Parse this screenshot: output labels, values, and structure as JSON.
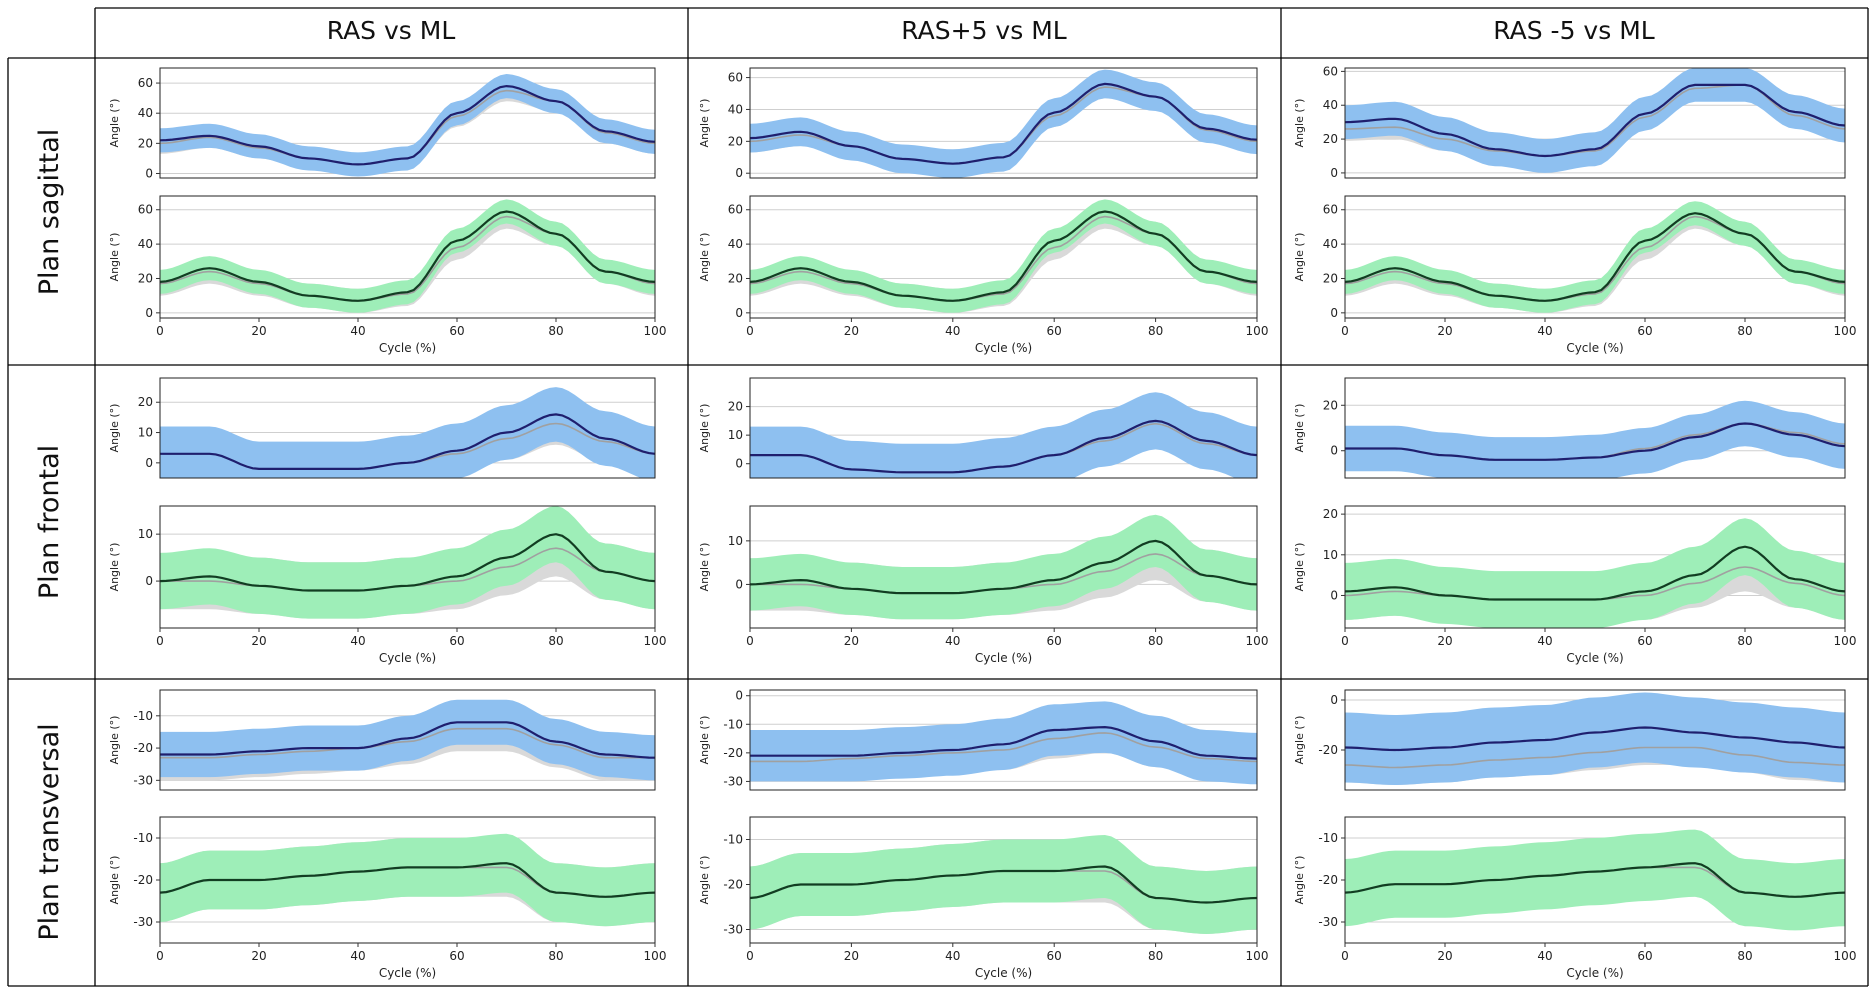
{
  "columns": [
    "RAS vs ML",
    "RAS+5 vs ML",
    "RAS -5 vs ML"
  ],
  "rows": [
    "Plan sagittal",
    "Plan frontal",
    "Plan transversal"
  ],
  "colors": {
    "blue_band": "#8ec0f0",
    "green_band": "#9eeeb8",
    "gray_band": "#d9d9d9",
    "blue_line": "#1f1f6e",
    "green_line": "#123d22",
    "gray_line": "#a0a0a0",
    "grid": "#cfcfcf",
    "border": "#000000"
  },
  "chart_data": [
    {
      "type": "line",
      "row": 0,
      "col": 0,
      "panel": "top",
      "band": "blue",
      "ylabel": "Angle (°)",
      "ylim": [
        -3,
        70
      ],
      "yticks": [
        0,
        20,
        40,
        60
      ],
      "grid": true,
      "x": [
        0,
        10,
        20,
        30,
        40,
        50,
        60,
        70,
        80,
        90,
        100
      ],
      "series": [
        {
          "values": [
            22,
            25,
            18,
            10,
            6,
            10,
            40,
            58,
            48,
            28,
            21
          ],
          "band_width": 8
        },
        {
          "values": [
            20,
            24,
            17,
            10,
            6,
            10,
            38,
            55,
            48,
            27,
            20
          ],
          "band_width": 5
        }
      ]
    },
    {
      "type": "line",
      "row": 0,
      "col": 0,
      "panel": "bottom",
      "band": "green",
      "ylabel": "Angle (°)",
      "xlabel": "Cycle (%)",
      "ylim": [
        -3,
        68
      ],
      "yticks": [
        0,
        20,
        40,
        60
      ],
      "xticks": [
        0,
        20,
        40,
        60,
        80,
        100
      ],
      "grid": true,
      "x": [
        0,
        10,
        20,
        30,
        40,
        50,
        60,
        70,
        80,
        90,
        100
      ],
      "series": [
        {
          "values": [
            18,
            26,
            18,
            10,
            7,
            12,
            42,
            59,
            46,
            24,
            18
          ],
          "band_width": 7
        },
        {
          "values": [
            17,
            24,
            17,
            10,
            7,
            11,
            38,
            56,
            46,
            24,
            17
          ],
          "band_width": 5
        }
      ]
    },
    {
      "type": "line",
      "row": 0,
      "col": 1,
      "panel": "top",
      "band": "blue",
      "ylabel": "Angle (°)",
      "ylim": [
        -3,
        66
      ],
      "yticks": [
        0,
        20,
        40,
        60
      ],
      "grid": true,
      "x": [
        0,
        10,
        20,
        30,
        40,
        50,
        60,
        70,
        80,
        90,
        100
      ],
      "series": [
        {
          "values": [
            22,
            26,
            17,
            9,
            6,
            10,
            38,
            56,
            48,
            28,
            21
          ],
          "band_width": 9
        },
        {
          "values": [
            20,
            24,
            17,
            9,
            6,
            10,
            36,
            54,
            48,
            27,
            20
          ],
          "band_width": 5
        }
      ]
    },
    {
      "type": "line",
      "row": 0,
      "col": 1,
      "panel": "bottom",
      "band": "green",
      "ylabel": "Angle (°)",
      "xlabel": "Cycle (%)",
      "ylim": [
        -3,
        68
      ],
      "yticks": [
        0,
        20,
        40,
        60
      ],
      "xticks": [
        0,
        20,
        40,
        60,
        80,
        100
      ],
      "grid": true,
      "x": [
        0,
        10,
        20,
        30,
        40,
        50,
        60,
        70,
        80,
        90,
        100
      ],
      "series": [
        {
          "values": [
            18,
            26,
            18,
            10,
            7,
            12,
            42,
            59,
            46,
            24,
            18
          ],
          "band_width": 7
        },
        {
          "values": [
            17,
            24,
            17,
            10,
            7,
            11,
            38,
            56,
            46,
            24,
            17
          ],
          "band_width": 5
        }
      ]
    },
    {
      "type": "line",
      "row": 0,
      "col": 2,
      "panel": "top",
      "band": "blue",
      "ylabel": "Angle (°)",
      "ylim": [
        -3,
        62
      ],
      "yticks": [
        0,
        20,
        40,
        60
      ],
      "grid": true,
      "x": [
        0,
        10,
        20,
        30,
        40,
        50,
        60,
        70,
        80,
        90,
        100
      ],
      "series": [
        {
          "values": [
            30,
            32,
            23,
            14,
            10,
            14,
            35,
            52,
            52,
            36,
            28
          ],
          "band_width": 10
        },
        {
          "values": [
            26,
            27,
            20,
            13,
            10,
            13,
            33,
            50,
            52,
            34,
            26
          ],
          "band_width": 5
        }
      ]
    },
    {
      "type": "line",
      "row": 0,
      "col": 2,
      "panel": "bottom",
      "band": "green",
      "ylabel": "Angle (°)",
      "xlabel": "Cycle (%)",
      "ylim": [
        -3,
        68
      ],
      "yticks": [
        0,
        20,
        40,
        60
      ],
      "xticks": [
        0,
        20,
        40,
        60,
        80,
        100
      ],
      "grid": true,
      "x": [
        0,
        10,
        20,
        30,
        40,
        50,
        60,
        70,
        80,
        90,
        100
      ],
      "series": [
        {
          "values": [
            18,
            26,
            18,
            10,
            7,
            12,
            42,
            58,
            46,
            24,
            18
          ],
          "band_width": 7
        },
        {
          "values": [
            17,
            24,
            17,
            10,
            7,
            11,
            38,
            56,
            46,
            24,
            17
          ],
          "band_width": 5
        }
      ]
    },
    {
      "type": "line",
      "row": 1,
      "col": 0,
      "panel": "top",
      "band": "blue",
      "ylabel": "Angle (°)",
      "ylim": [
        -5,
        28
      ],
      "yticks": [
        0,
        10,
        20
      ],
      "grid": true,
      "x": [
        0,
        10,
        20,
        30,
        40,
        50,
        60,
        70,
        80,
        90,
        100
      ],
      "series": [
        {
          "values": [
            3,
            3,
            -2,
            -2,
            -2,
            0,
            4,
            10,
            16,
            8,
            3
          ],
          "band_width": 9
        },
        {
          "values": [
            3,
            3,
            -2,
            -2,
            -2,
            0,
            3,
            8,
            13,
            7,
            3
          ],
          "band_width": 5
        }
      ]
    },
    {
      "type": "line",
      "row": 1,
      "col": 0,
      "panel": "bottom",
      "band": "green",
      "ylabel": "Angle (°)",
      "xlabel": "Cycle (%)",
      "ylim": [
        -10,
        16
      ],
      "yticks": [
        0,
        10
      ],
      "xticks": [
        0,
        20,
        40,
        60,
        80,
        100
      ],
      "grid": true,
      "x": [
        0,
        10,
        20,
        30,
        40,
        50,
        60,
        70,
        80,
        90,
        100
      ],
      "series": [
        {
          "values": [
            0,
            1,
            -1,
            -2,
            -2,
            -1,
            1,
            5,
            10,
            2,
            0
          ],
          "band_width": 6
        },
        {
          "values": [
            0,
            0,
            -1,
            -2,
            -2,
            -1,
            0,
            3,
            7,
            2,
            0
          ],
          "band_width": 4
        }
      ]
    },
    {
      "type": "line",
      "row": 1,
      "col": 1,
      "panel": "top",
      "band": "blue",
      "ylabel": "Angle (°)",
      "ylim": [
        -5,
        30
      ],
      "yticks": [
        0,
        10,
        20
      ],
      "grid": true,
      "x": [
        0,
        10,
        20,
        30,
        40,
        50,
        60,
        70,
        80,
        90,
        100
      ],
      "series": [
        {
          "values": [
            3,
            3,
            -2,
            -3,
            -3,
            -1,
            3,
            9,
            15,
            8,
            3
          ],
          "band_width": 10
        },
        {
          "values": [
            3,
            3,
            -2,
            -3,
            -3,
            -1,
            3,
            8,
            14,
            7,
            3
          ],
          "band_width": 5
        }
      ]
    },
    {
      "type": "line",
      "row": 1,
      "col": 1,
      "panel": "bottom",
      "band": "green",
      "ylabel": "Angle (°)",
      "xlabel": "Cycle (%)",
      "ylim": [
        -10,
        18
      ],
      "yticks": [
        0,
        10
      ],
      "xticks": [
        0,
        20,
        40,
        60,
        80,
        100
      ],
      "grid": true,
      "x": [
        0,
        10,
        20,
        30,
        40,
        50,
        60,
        70,
        80,
        90,
        100
      ],
      "series": [
        {
          "values": [
            0,
            1,
            -1,
            -2,
            -2,
            -1,
            1,
            5,
            10,
            2,
            0
          ],
          "band_width": 6
        },
        {
          "values": [
            0,
            0,
            -1,
            -2,
            -2,
            -1,
            0,
            3,
            7,
            2,
            0
          ],
          "band_width": 4
        }
      ]
    },
    {
      "type": "line",
      "row": 1,
      "col": 2,
      "panel": "top",
      "band": "blue",
      "ylabel": "Angle (°)",
      "ylim": [
        -12,
        32
      ],
      "yticks": [
        0,
        20
      ],
      "grid": true,
      "x": [
        0,
        10,
        20,
        30,
        40,
        50,
        60,
        70,
        80,
        90,
        100
      ],
      "series": [
        {
          "values": [
            1,
            1,
            -2,
            -4,
            -4,
            -3,
            0,
            6,
            12,
            7,
            2
          ],
          "band_width": 10
        },
        {
          "values": [
            1,
            1,
            -2,
            -4,
            -4,
            -3,
            1,
            7,
            12,
            8,
            3
          ],
          "band_width": 5
        }
      ]
    },
    {
      "type": "line",
      "row": 1,
      "col": 2,
      "panel": "bottom",
      "band": "green",
      "ylabel": "Angle (°)",
      "xlabel": "Cycle (%)",
      "ylim": [
        -8,
        22
      ],
      "yticks": [
        0,
        10,
        20
      ],
      "xticks": [
        0,
        20,
        40,
        60,
        80,
        100
      ],
      "grid": true,
      "x": [
        0,
        10,
        20,
        30,
        40,
        50,
        60,
        70,
        80,
        90,
        100
      ],
      "series": [
        {
          "values": [
            1,
            2,
            0,
            -1,
            -1,
            -1,
            1,
            5,
            12,
            4,
            1
          ],
          "band_width": 7
        },
        {
          "values": [
            0,
            1,
            0,
            -1,
            -1,
            -1,
            0,
            3,
            7,
            3,
            0
          ],
          "band_width": 4
        }
      ]
    },
    {
      "type": "line",
      "row": 2,
      "col": 0,
      "panel": "top",
      "band": "blue",
      "ylabel": "Angle (°)",
      "ylim": [
        -33,
        -2
      ],
      "yticks": [
        -10,
        -20,
        -30
      ],
      "grid": true,
      "x": [
        0,
        10,
        20,
        30,
        40,
        50,
        60,
        70,
        80,
        90,
        100
      ],
      "series": [
        {
          "values": [
            -22,
            -22,
            -21,
            -20,
            -20,
            -17,
            -12,
            -12,
            -18,
            -22,
            -23
          ],
          "band_width": 7
        },
        {
          "values": [
            -23,
            -23,
            -22,
            -21,
            -20,
            -18,
            -14,
            -14,
            -19,
            -23,
            -23
          ],
          "band_width": 5
        }
      ]
    },
    {
      "type": "line",
      "row": 2,
      "col": 0,
      "panel": "bottom",
      "band": "green",
      "ylabel": "Angle (°)",
      "xlabel": "Cycle (%)",
      "ylim": [
        -35,
        -5
      ],
      "yticks": [
        -10,
        -20,
        -30
      ],
      "xticks": [
        0,
        20,
        40,
        60,
        80,
        100
      ],
      "grid": true,
      "x": [
        0,
        10,
        20,
        30,
        40,
        50,
        60,
        70,
        80,
        90,
        100
      ],
      "series": [
        {
          "values": [
            -23,
            -20,
            -20,
            -19,
            -18,
            -17,
            -17,
            -16,
            -23,
            -24,
            -23
          ],
          "band_width": 7
        },
        {
          "values": [
            -23,
            -20,
            -20,
            -19,
            -18,
            -17,
            -17,
            -17,
            -23,
            -24,
            -23
          ],
          "band_width": 5
        }
      ]
    },
    {
      "type": "line",
      "row": 2,
      "col": 1,
      "panel": "top",
      "band": "blue",
      "ylabel": "Angle (°)",
      "ylim": [
        -33,
        2
      ],
      "yticks": [
        0,
        -10,
        -20,
        -30
      ],
      "grid": true,
      "x": [
        0,
        10,
        20,
        30,
        40,
        50,
        60,
        70,
        80,
        90,
        100
      ],
      "series": [
        {
          "values": [
            -21,
            -21,
            -21,
            -20,
            -19,
            -17,
            -12,
            -11,
            -16,
            -21,
            -22
          ],
          "band_width": 9
        },
        {
          "values": [
            -23,
            -23,
            -22,
            -21,
            -20,
            -19,
            -15,
            -13,
            -18,
            -22,
            -23
          ],
          "band_width": 5
        }
      ]
    },
    {
      "type": "line",
      "row": 2,
      "col": 1,
      "panel": "bottom",
      "band": "green",
      "ylabel": "Angle (°)",
      "xlabel": "Cycle (%)",
      "ylim": [
        -33,
        -5
      ],
      "yticks": [
        -10,
        -20,
        -30
      ],
      "xticks": [
        0,
        20,
        40,
        60,
        80,
        100
      ],
      "grid": true,
      "x": [
        0,
        10,
        20,
        30,
        40,
        50,
        60,
        70,
        80,
        90,
        100
      ],
      "series": [
        {
          "values": [
            -23,
            -20,
            -20,
            -19,
            -18,
            -17,
            -17,
            -16,
            -23,
            -24,
            -23
          ],
          "band_width": 7
        },
        {
          "values": [
            -23,
            -20,
            -20,
            -19,
            -18,
            -17,
            -17,
            -17,
            -23,
            -24,
            -23
          ],
          "band_width": 5
        }
      ]
    },
    {
      "type": "line",
      "row": 2,
      "col": 2,
      "panel": "top",
      "band": "blue",
      "ylabel": "Angle (°)",
      "ylim": [
        -36,
        4
      ],
      "yticks": [
        0,
        -20
      ],
      "grid": true,
      "x": [
        0,
        10,
        20,
        30,
        40,
        50,
        60,
        70,
        80,
        90,
        100
      ],
      "series": [
        {
          "values": [
            -19,
            -20,
            -19,
            -17,
            -16,
            -13,
            -11,
            -13,
            -15,
            -17,
            -19
          ],
          "band_width": 14
        },
        {
          "values": [
            -26,
            -27,
            -26,
            -24,
            -23,
            -21,
            -19,
            -19,
            -22,
            -25,
            -26
          ],
          "band_width": 5
        }
      ]
    },
    {
      "type": "line",
      "row": 2,
      "col": 2,
      "panel": "bottom",
      "band": "green",
      "ylabel": "Angle (°)",
      "xlabel": "Cycle (%)",
      "ylim": [
        -35,
        -5
      ],
      "yticks": [
        -10,
        -20,
        -30
      ],
      "xticks": [
        0,
        20,
        40,
        60,
        80,
        100
      ],
      "grid": true,
      "x": [
        0,
        10,
        20,
        30,
        40,
        50,
        60,
        70,
        80,
        90,
        100
      ],
      "series": [
        {
          "values": [
            -23,
            -21,
            -21,
            -20,
            -19,
            -18,
            -17,
            -16,
            -23,
            -24,
            -23
          ],
          "band_width": 8
        },
        {
          "values": [
            -23,
            -21,
            -21,
            -20,
            -19,
            -18,
            -17,
            -17,
            -23,
            -24,
            -23
          ],
          "band_width": 5
        }
      ]
    }
  ]
}
